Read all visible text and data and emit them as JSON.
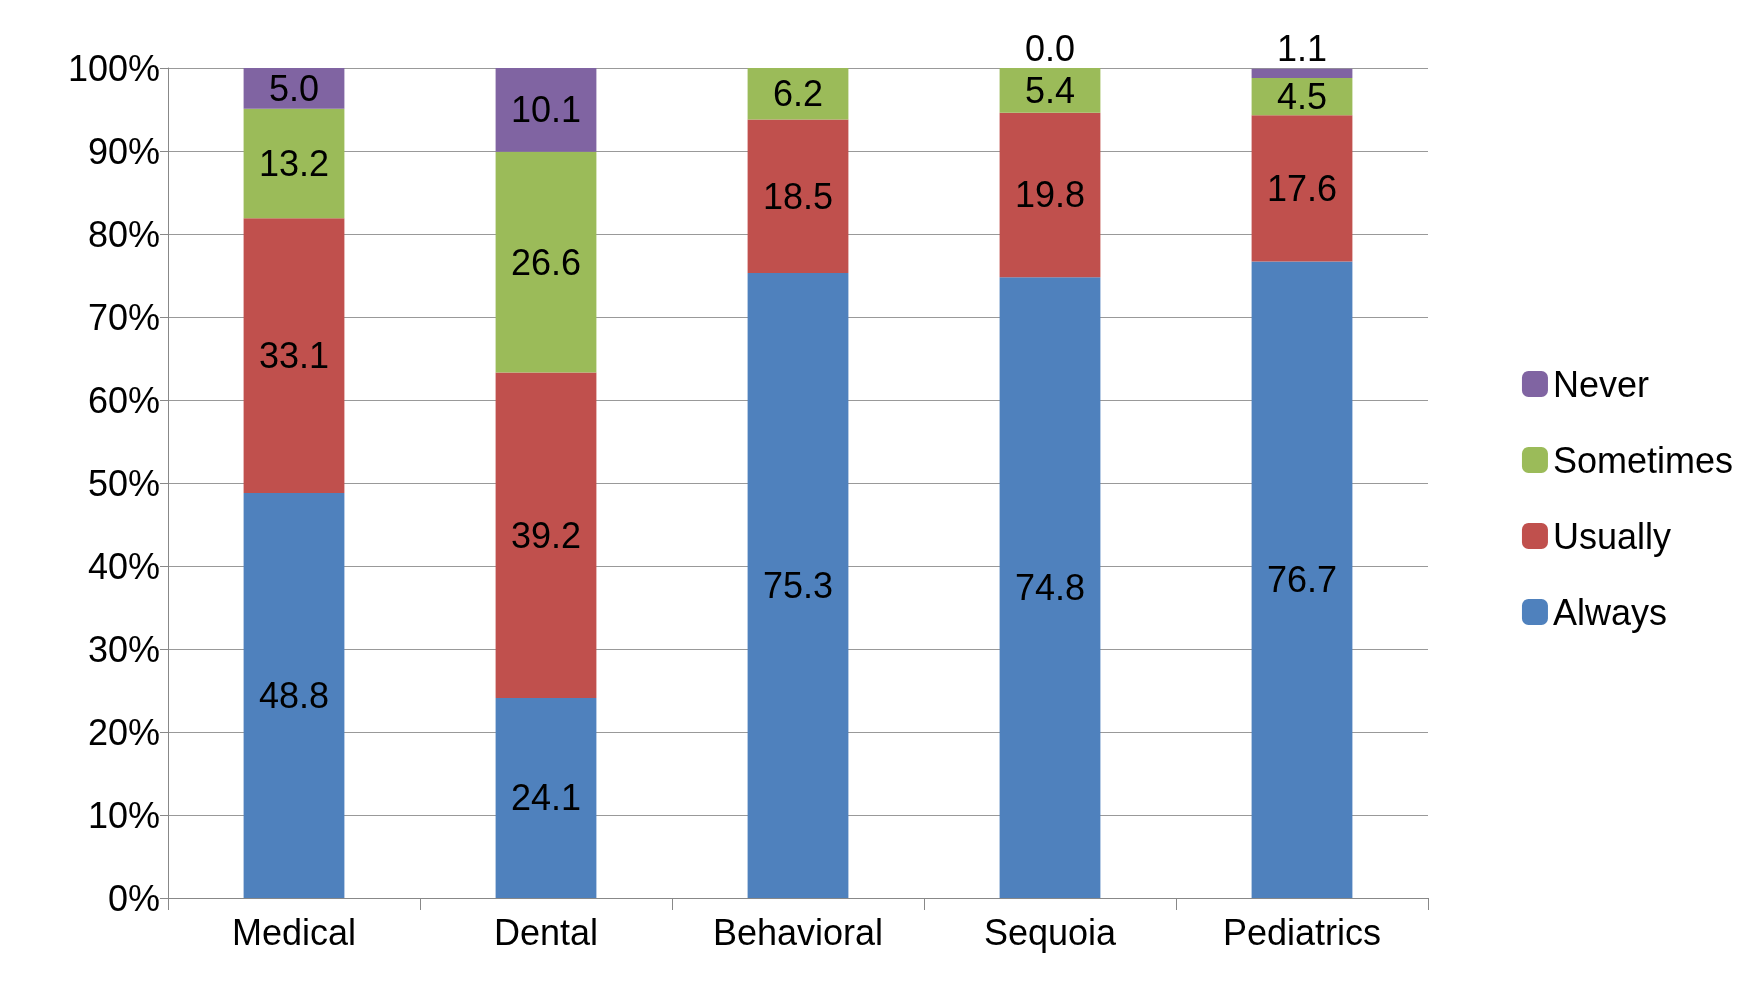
{
  "chart_data": {
    "type": "bar",
    "stacked": true,
    "categories": [
      "Medical",
      "Dental",
      "Behavioral",
      "Sequoia",
      "Pediatrics"
    ],
    "series": [
      {
        "name": "Always",
        "color": "#4f81bd",
        "values": [
          48.8,
          24.1,
          75.3,
          74.8,
          76.7
        ],
        "value_labels": [
          "48.8",
          "24.1",
          "75.3",
          "74.8",
          "76.7"
        ]
      },
      {
        "name": "Usually",
        "color": "#c0504d",
        "values": [
          33.1,
          39.2,
          18.5,
          19.8,
          17.6
        ],
        "value_labels": [
          "33.1",
          "39.2",
          "18.5",
          "19.8",
          "17.6"
        ]
      },
      {
        "name": "Sometimes",
        "color": "#9bbb59",
        "values": [
          13.2,
          26.6,
          6.2,
          5.4,
          4.5
        ],
        "value_labels": [
          "13.2",
          "26.6",
          "6.2",
          "5.4",
          "4.5"
        ]
      },
      {
        "name": "Never",
        "color": "#8064a2",
        "values": [
          5.0,
          10.1,
          null,
          0.0,
          1.1
        ],
        "value_labels": [
          "5.0",
          "10.1",
          null,
          "0.0",
          "1.1"
        ]
      }
    ],
    "ylim": [
      0,
      100
    ],
    "yticks": [
      {
        "value": 0,
        "label": "0%"
      },
      {
        "value": 10,
        "label": "10%"
      },
      {
        "value": 20,
        "label": "20%"
      },
      {
        "value": 30,
        "label": "30%"
      },
      {
        "value": 40,
        "label": "40%"
      },
      {
        "value": 50,
        "label": "50%"
      },
      {
        "value": 60,
        "label": "60%"
      },
      {
        "value": 70,
        "label": "70%"
      },
      {
        "value": 80,
        "label": "80%"
      },
      {
        "value": 90,
        "label": "90%"
      },
      {
        "value": 100,
        "label": "100%"
      }
    ],
    "grid": "y",
    "legend": "right"
  }
}
